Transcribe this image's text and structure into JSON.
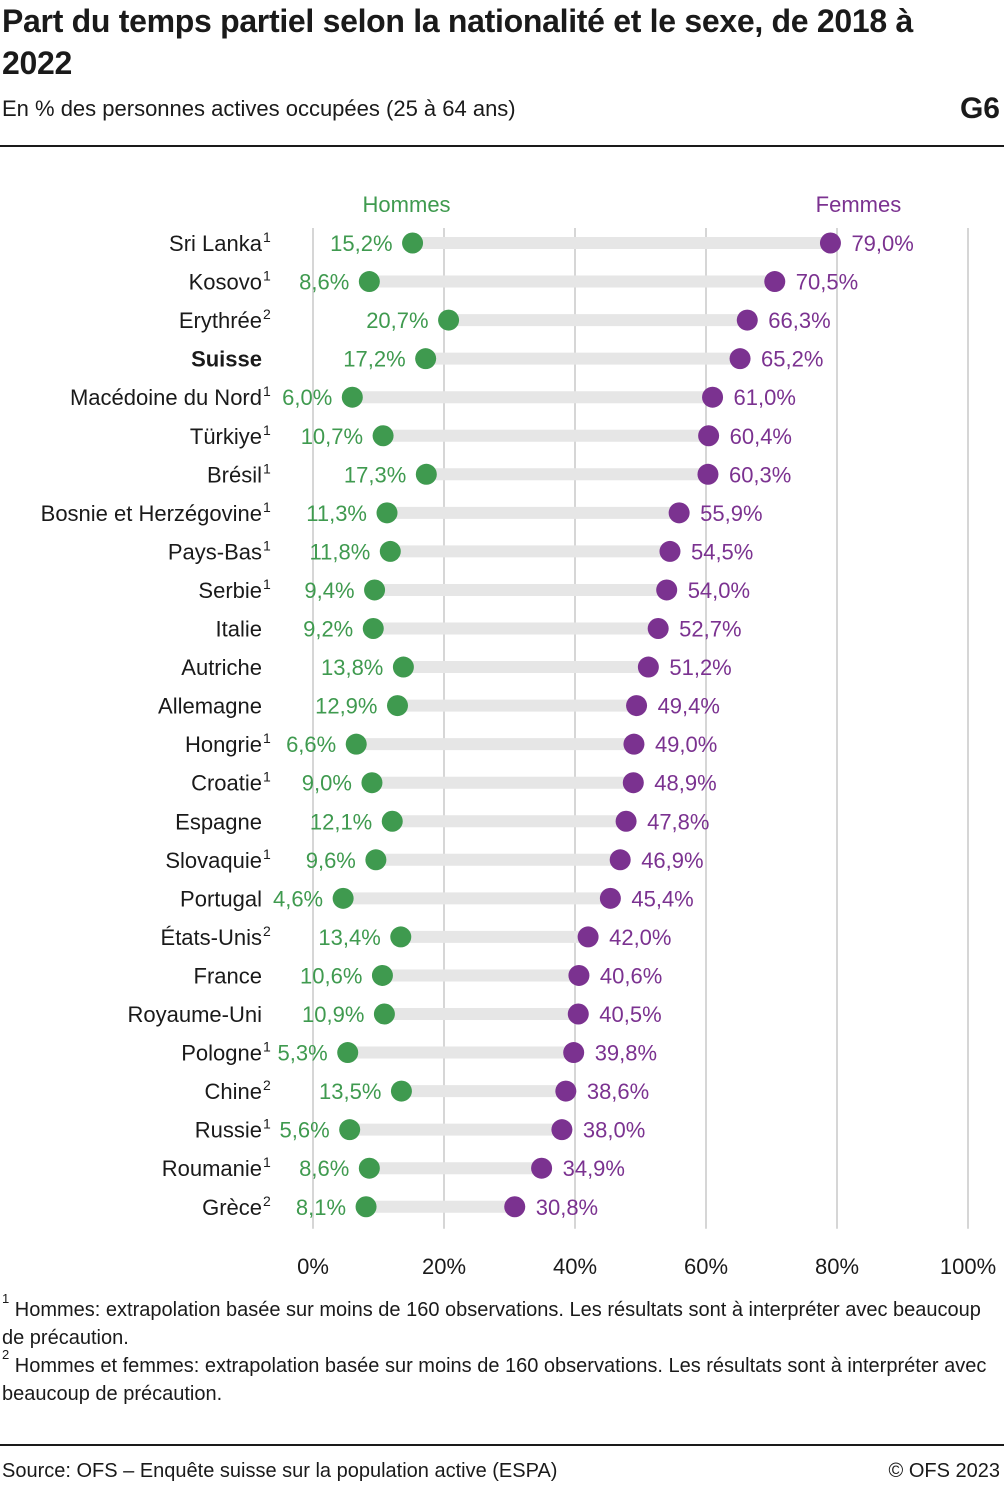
{
  "header": {
    "title": "Part du temps partiel selon la nationalité et le sexe, de 2018 à 2022",
    "subtitle": "En % des personnes actives occupées (25 à 64 ans)",
    "chart_id": "G6"
  },
  "colors": {
    "men": "#3f9a4f",
    "women": "#7b3290",
    "bar": "#e6e6e6",
    "grid": "#c8c8c8",
    "text": "#1a1a1a"
  },
  "chart_data": {
    "type": "dumbbell",
    "orientation": "horizontal",
    "xlim": [
      0,
      100
    ],
    "x_ticks": [
      0,
      20,
      40,
      60,
      80,
      100
    ],
    "x_tick_labels": [
      "0%",
      "20%",
      "40%",
      "60%",
      "80%",
      "100%"
    ],
    "grid": true,
    "series_names": [
      "Hommes",
      "Femmes"
    ],
    "highlight": "Suisse",
    "categories": [
      {
        "name": "Sri Lanka",
        "note": "1",
        "men": 15.2,
        "women": 79.0,
        "men_label": "15,2%",
        "women_label": "79,0%"
      },
      {
        "name": "Kosovo",
        "note": "1",
        "men": 8.6,
        "women": 70.5,
        "men_label": "8,6%",
        "women_label": "70,5%"
      },
      {
        "name": "Erythrée",
        "note": "2",
        "men": 20.7,
        "women": 66.3,
        "men_label": "20,7%",
        "women_label": "66,3%"
      },
      {
        "name": "Suisse",
        "note": "",
        "men": 17.2,
        "women": 65.2,
        "men_label": "17,2%",
        "women_label": "65,2%"
      },
      {
        "name": "Macédoine du Nord",
        "note": "1",
        "men": 6.0,
        "women": 61.0,
        "men_label": "6,0%",
        "women_label": "61,0%"
      },
      {
        "name": "Türkiye",
        "note": "1",
        "men": 10.7,
        "women": 60.4,
        "men_label": "10,7%",
        "women_label": "60,4%"
      },
      {
        "name": "Brésil",
        "note": "1",
        "men": 17.3,
        "women": 60.3,
        "men_label": "17,3%",
        "women_label": "60,3%"
      },
      {
        "name": "Bosnie et Herzégovine",
        "note": "1",
        "men": 11.3,
        "women": 55.9,
        "men_label": "11,3%",
        "women_label": "55,9%"
      },
      {
        "name": "Pays-Bas",
        "note": "1",
        "men": 11.8,
        "women": 54.5,
        "men_label": "11,8%",
        "women_label": "54,5%"
      },
      {
        "name": "Serbie",
        "note": "1",
        "men": 9.4,
        "women": 54.0,
        "men_label": "9,4%",
        "women_label": "54,0%"
      },
      {
        "name": "Italie",
        "note": "",
        "men": 9.2,
        "women": 52.7,
        "men_label": "9,2%",
        "women_label": "52,7%"
      },
      {
        "name": "Autriche",
        "note": "",
        "men": 13.8,
        "women": 51.2,
        "men_label": "13,8%",
        "women_label": "51,2%"
      },
      {
        "name": "Allemagne",
        "note": "",
        "men": 12.9,
        "women": 49.4,
        "men_label": "12,9%",
        "women_label": "49,4%"
      },
      {
        "name": "Hongrie",
        "note": "1",
        "men": 6.6,
        "women": 49.0,
        "men_label": "6,6%",
        "women_label": "49,0%"
      },
      {
        "name": "Croatie",
        "note": "1",
        "men": 9.0,
        "women": 48.9,
        "men_label": "9,0%",
        "women_label": "48,9%"
      },
      {
        "name": "Espagne",
        "note": "",
        "men": 12.1,
        "women": 47.8,
        "men_label": "12,1%",
        "women_label": "47,8%"
      },
      {
        "name": "Slovaquie",
        "note": "1",
        "men": 9.6,
        "women": 46.9,
        "men_label": "9,6%",
        "women_label": "46,9%"
      },
      {
        "name": "Portugal",
        "note": "",
        "men": 4.6,
        "women": 45.4,
        "men_label": "4,6%",
        "women_label": "45,4%"
      },
      {
        "name": "États-Unis",
        "note": "2",
        "men": 13.4,
        "women": 42.0,
        "men_label": "13,4%",
        "women_label": "42,0%"
      },
      {
        "name": "France",
        "note": "",
        "men": 10.6,
        "women": 40.6,
        "men_label": "10,6%",
        "women_label": "40,6%"
      },
      {
        "name": "Royaume-Uni",
        "note": "",
        "men": 10.9,
        "women": 40.5,
        "men_label": "10,9%",
        "women_label": "40,5%"
      },
      {
        "name": "Pologne",
        "note": "1",
        "men": 5.3,
        "women": 39.8,
        "men_label": "5,3%",
        "women_label": "39,8%"
      },
      {
        "name": "Chine",
        "note": "2",
        "men": 13.5,
        "women": 38.6,
        "men_label": "13,5%",
        "women_label": "38,6%"
      },
      {
        "name": "Russie",
        "note": "1",
        "men": 5.6,
        "women": 38.0,
        "men_label": "5,6%",
        "women_label": "38,0%"
      },
      {
        "name": "Roumanie",
        "note": "1",
        "men": 8.6,
        "women": 34.9,
        "men_label": "8,6%",
        "women_label": "34,9%"
      },
      {
        "name": "Grèce",
        "note": "2",
        "men": 8.1,
        "women": 30.8,
        "men_label": "8,1%",
        "women_label": "30,8%"
      }
    ]
  },
  "footnotes": [
    {
      "marker": "1",
      "text": " Hommes: extrapolation basée sur moins de 160 observations. Les résultats sont à interpréter avec beaucoup de précaution."
    },
    {
      "marker": "2",
      "text": " Hommes et femmes: extrapolation basée sur moins de 160 observations. Les résultats sont à interpréter avec beaucoup de précaution."
    }
  ],
  "footer": {
    "source": "Source: OFS – Enquête suisse sur la population active (ESPA)",
    "copyright": "© OFS 2023"
  }
}
